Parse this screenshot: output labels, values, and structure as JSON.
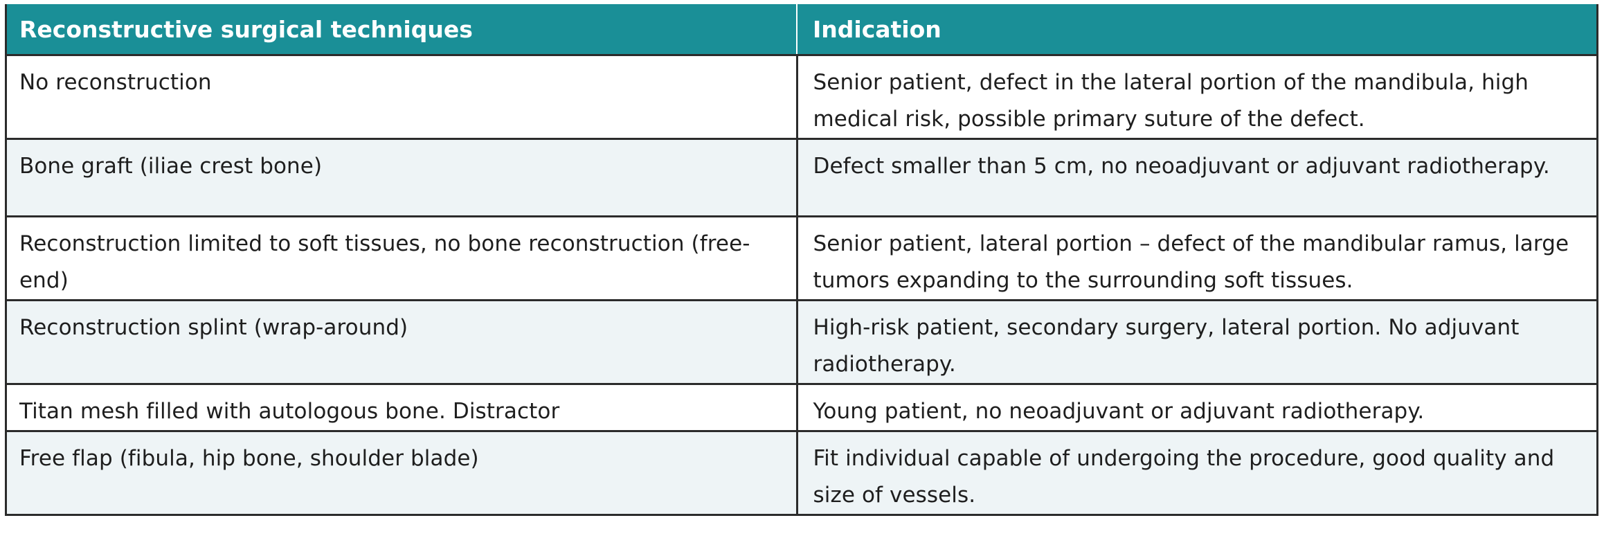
{
  "table": {
    "headers": [
      "Reconstructive surgical techniques",
      "Indication"
    ],
    "rows": [
      {
        "technique": "No reconstruction",
        "indication": "Senior patient, defect in the lateral portion of the mandibula, high medical risk, possible primary suture of the defect."
      },
      {
        "technique": "Bone graft (iliae crest bone)",
        "indication": "Defect smaller than 5 cm, no neoadjuvant or adjuvant radiotherapy."
      },
      {
        "technique": "Reconstruction limited to soft tissues, no bone reconstruction (free-end)",
        "indication": "Senior patient, lateral portion – defect of the mandibular ramus, large tumors expanding to the surrounding soft tissues."
      },
      {
        "technique": "Reconstruction splint (wrap-around)",
        "indication": "High-risk patient, secondary surgery, lateral portion. No adjuvant radiotherapy."
      },
      {
        "technique": "Titan mesh filled with autologous bone. Distractor",
        "indication": "Young patient, no neoadjuvant or adjuvant radiotherapy."
      },
      {
        "technique": "Free flap (fibula, hip bone, shoulder blade)",
        "indication": "Fit individual capable of undergoing the procedure, good quality and size of vessels."
      }
    ]
  },
  "colors": {
    "header_bg": "#1a8f97",
    "header_text": "#ffffff",
    "stripe_bg": "#eef4f6",
    "border": "#2b2b2b"
  }
}
